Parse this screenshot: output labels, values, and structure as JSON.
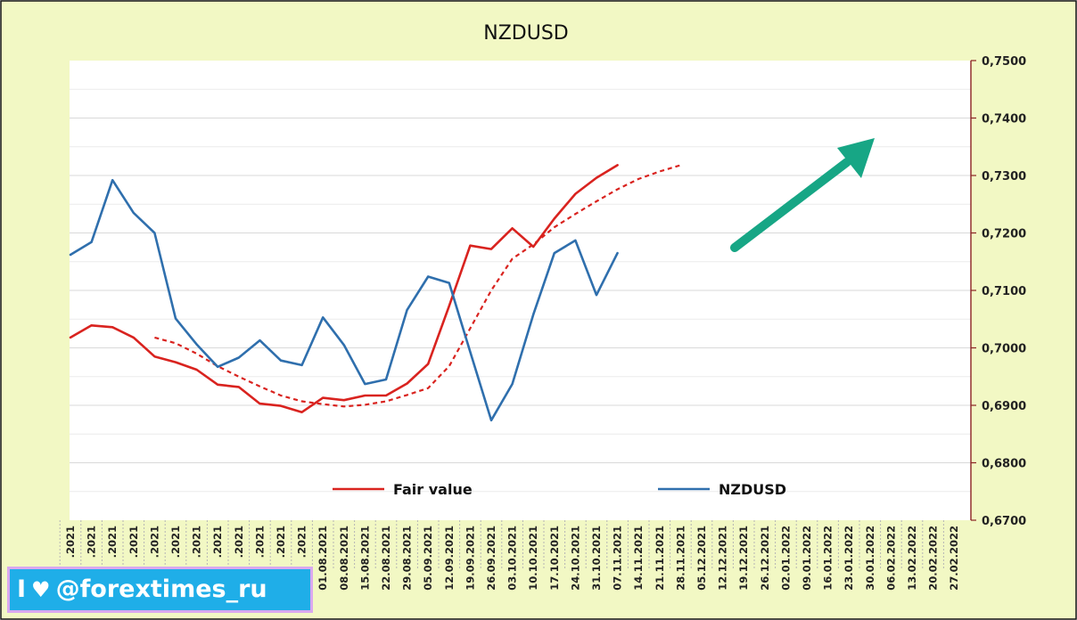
{
  "chart_data": {
    "type": "line",
    "title": "NZDUSD",
    "xlabel": "",
    "ylabel": "",
    "ylim": [
      0.67,
      0.75
    ],
    "y_ticks": [
      "0,6700",
      "0,6800",
      "0,6900",
      "0,7000",
      "0,7100",
      "0,7200",
      "0,7300",
      "0,7400",
      "0,7500"
    ],
    "x_tick_labels": [
      ".2021",
      ".2021",
      ".2021",
      ".2021",
      ".2021",
      ".2021",
      ".2021",
      ".2021",
      ".2021",
      ".2021",
      ".2021",
      ".2021",
      "01.08.2021",
      "08.08.2021",
      "15.08.2021",
      "22.08.2021",
      "29.08.2021",
      "05.09.2021",
      "12.09.2021",
      "19.09.2021",
      "26.09.2021",
      "03.10.2021",
      "10.10.2021",
      "17.10.2021",
      "24.10.2021",
      "31.10.2021",
      "07.11.2021",
      "14.11.2021",
      "21.11.2021",
      "28.11.2021",
      "05.12.2021",
      "12.12.2021",
      "19.12.2021",
      "26.12.2021",
      "02.01.2022",
      "09.01.2022",
      "16.01.2022",
      "23.01.2022",
      "30.01.2022",
      "06.02.2022",
      "13.02.2022",
      "20.02.2022",
      "27.02.2022"
    ],
    "grid": true,
    "legend_position": "bottom",
    "series": [
      {
        "name": "Fair value",
        "color": "#d9231f",
        "style": "solid",
        "values": [
          0.7018,
          0.7039,
          0.7036,
          0.7018,
          0.6985,
          0.6975,
          0.6962,
          0.6936,
          0.6932,
          0.6903,
          0.6899,
          0.6888,
          0.6913,
          0.6909,
          0.6917,
          0.6917,
          0.6938,
          0.6972,
          0.7073,
          0.7178,
          0.7172,
          0.7208,
          0.7176,
          0.7225,
          0.7268,
          0.7296,
          0.7318
        ]
      },
      {
        "name": "",
        "color": "#d9231f",
        "style": "dashed",
        "values": [
          null,
          null,
          null,
          null,
          0.7018,
          0.7008,
          0.699,
          0.6968,
          0.695,
          0.6933,
          0.6917,
          0.6907,
          0.6902,
          0.6898,
          0.6901,
          0.6907,
          0.6918,
          0.693,
          0.6968,
          0.7034,
          0.71,
          0.7155,
          0.718,
          0.721,
          0.7233,
          0.7255,
          0.7276,
          0.7294,
          0.7307,
          0.7318
        ]
      },
      {
        "name": "NZDUSD",
        "color": "#2f6fad",
        "style": "solid",
        "values": [
          0.7162,
          0.7184,
          0.7292,
          0.7235,
          0.72,
          0.7051,
          0.7006,
          0.6967,
          0.6983,
          0.7013,
          0.6978,
          0.697,
          0.7053,
          0.7005,
          0.6937,
          0.6945,
          0.7066,
          0.7124,
          0.7113,
          0.6993,
          0.6874,
          0.6937,
          0.7058,
          0.7165,
          0.7187,
          0.7092,
          0.7165
        ]
      }
    ]
  },
  "watermark": {
    "text_before": "I",
    "heart": "♥",
    "handle": "@forextimes_ru"
  },
  "colors": {
    "outer_background": "#f2f8c4",
    "plot_background": "#ffffff",
    "axis_line": "#8b2323",
    "grid": "#d9d9d9",
    "arrow": "#17a685",
    "watermark_bg": "#1faee8",
    "watermark_border": "#d9a8f0"
  }
}
